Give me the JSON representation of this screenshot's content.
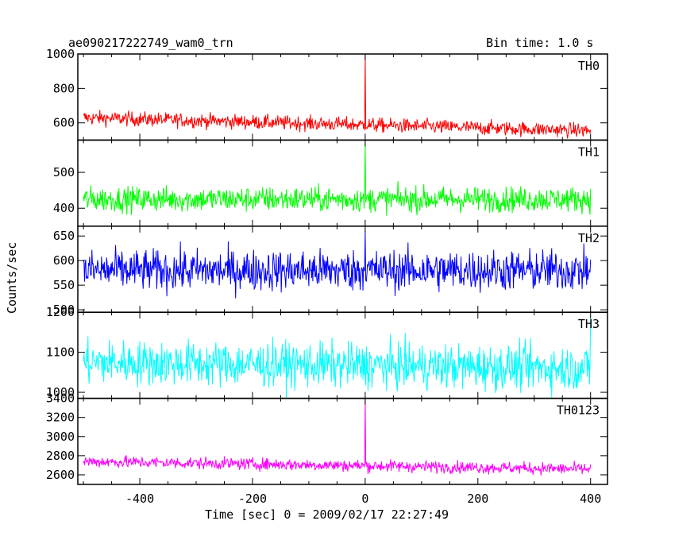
{
  "chart_data": {
    "type": "line",
    "title": "ae090217222749_wam0_trn",
    "subtitle": "Bin time: 1.0 s",
    "xlabel": "Time [sec] 0 = 2009/02/17 22:27:49",
    "ylabel": "Counts/sec",
    "xlim": [
      -510,
      430
    ],
    "xticks": [
      -400,
      -200,
      0,
      200,
      400
    ],
    "panels": [
      {
        "name": "TH0",
        "color": "#ff0000",
        "ylim": [
          500,
          1000
        ],
        "yticks": [
          600,
          800,
          1000
        ],
        "trend_start": 630,
        "trend_end": 555,
        "noise": 30,
        "spike_x": 0,
        "spike_y": 1000
      },
      {
        "name": "TH1",
        "color": "#00ff00",
        "ylim": [
          350,
          590
        ],
        "yticks": [
          400,
          500
        ],
        "trend_start": 425,
        "trend_end": 425,
        "noise": 25,
        "spike_x": 0,
        "spike_y": 585
      },
      {
        "name": "TH2",
        "color": "#0000ff",
        "ylim": [
          495,
          670
        ],
        "yticks": [
          500,
          550,
          600,
          650
        ],
        "trend_start": 580,
        "trend_end": 580,
        "noise": 30,
        "spike_x": 0,
        "spike_y": 660
      },
      {
        "name": "TH3",
        "color": "#00ffff",
        "ylim": [
          985,
          1200
        ],
        "yticks": [
          1000,
          1100,
          1200
        ],
        "trend_start": 1075,
        "trend_end": 1060,
        "noise": 40,
        "spike_x": 400,
        "spike_y": 1185
      },
      {
        "name": "TH0123",
        "color": "#ff00ff",
        "ylim": [
          2500,
          3400
        ],
        "yticks": [
          2600,
          2800,
          3000,
          3200,
          3400
        ],
        "trend_start": 2740,
        "trend_end": 2660,
        "noise": 45,
        "spike_x": 0,
        "spike_y": 3400
      }
    ]
  }
}
